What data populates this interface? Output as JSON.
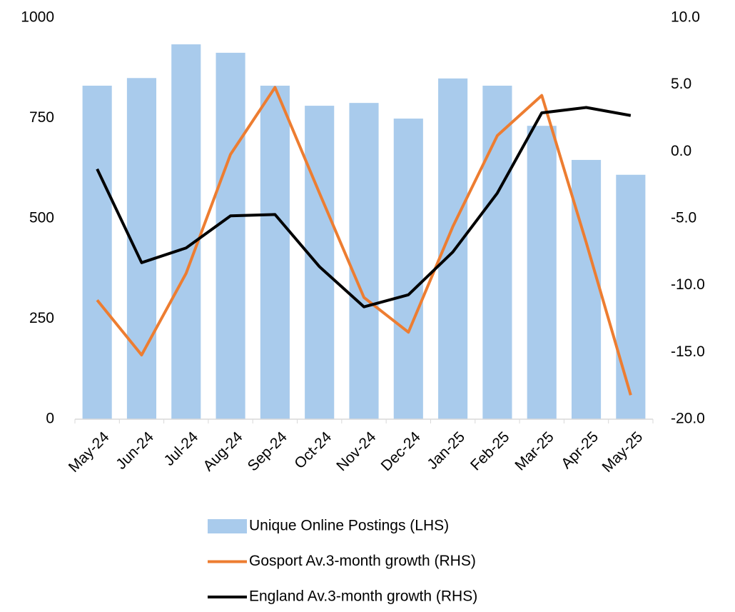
{
  "chart_data": {
    "type": "bar_line",
    "categories": [
      "May-24",
      "Jun-24",
      "Jul-24",
      "Aug-24",
      "Sep-24",
      "Oct-24",
      "Nov-24",
      "Dec-24",
      "Jan-25",
      "Feb-25",
      "Mar-25",
      "Apr-25",
      "May-25"
    ],
    "series": [
      {
        "name": "Unique Online Postings (LHS)",
        "type": "bar",
        "color": "#a9cbec",
        "values": [
          831,
          850,
          934,
          913,
          831,
          781,
          788,
          749,
          849,
          831,
          731,
          646,
          609
        ]
      },
      {
        "name": "Gosport Av.3-month growth (RHS)",
        "type": "line",
        "axis": "y2",
        "color": "#ed7d31",
        "values": [
          -11.1,
          -15.2,
          -9.1,
          -0.2,
          4.8,
          -3.1,
          -10.9,
          -13.5,
          -5.6,
          1.2,
          4.2,
          -6.8,
          -18.2
        ]
      },
      {
        "name": "England Av.3-month growth (RHS)",
        "type": "line",
        "axis": "y2",
        "color": "#000000",
        "values": [
          -1.3,
          -8.3,
          -7.2,
          -4.8,
          -4.7,
          -8.6,
          -11.6,
          -10.7,
          -7.5,
          -3.1,
          2.9,
          3.3,
          2.7
        ]
      }
    ],
    "ylim": [
      0,
      1000
    ],
    "yticks": [
      0,
      250,
      500,
      750,
      1000
    ],
    "y2lim": [
      -20,
      10
    ],
    "y2ticks": [
      {
        "value": -20,
        "label": "-20.0"
      },
      {
        "value": -15,
        "label": "-15.0"
      },
      {
        "value": -10,
        "label": "-10.0"
      },
      {
        "value": -5,
        "label": "-5.0"
      },
      {
        "value": 0,
        "label": "0.0"
      },
      {
        "value": 5,
        "label": "5.0"
      },
      {
        "value": 10,
        "label": "10.0"
      }
    ],
    "legend": "bottom"
  }
}
